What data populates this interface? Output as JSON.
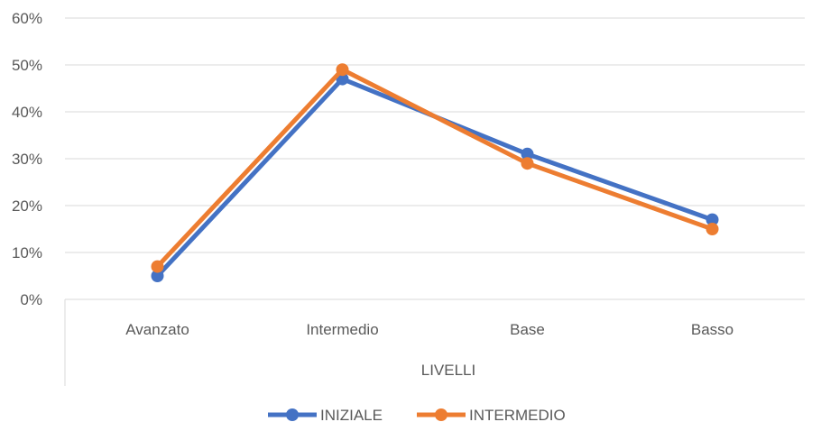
{
  "chart_data": {
    "type": "line",
    "categories": [
      "Avanzato",
      "Intermedio",
      "Base",
      "Basso"
    ],
    "series": [
      {
        "name": "INIZIALE",
        "values": [
          0.05,
          0.47,
          0.31,
          0.17
        ],
        "color": "#4472C4"
      },
      {
        "name": "INTERMEDIO",
        "values": [
          0.07,
          0.49,
          0.29,
          0.15
        ],
        "color": "#ED7D31"
      }
    ],
    "xlabel": "LIVELLI",
    "ylabel": "",
    "ylim": [
      0,
      0.6
    ],
    "yticks": [
      "0%",
      "10%",
      "20%",
      "30%",
      "40%",
      "50%",
      "60%"
    ],
    "grid": true,
    "legend_position": "bottom"
  }
}
